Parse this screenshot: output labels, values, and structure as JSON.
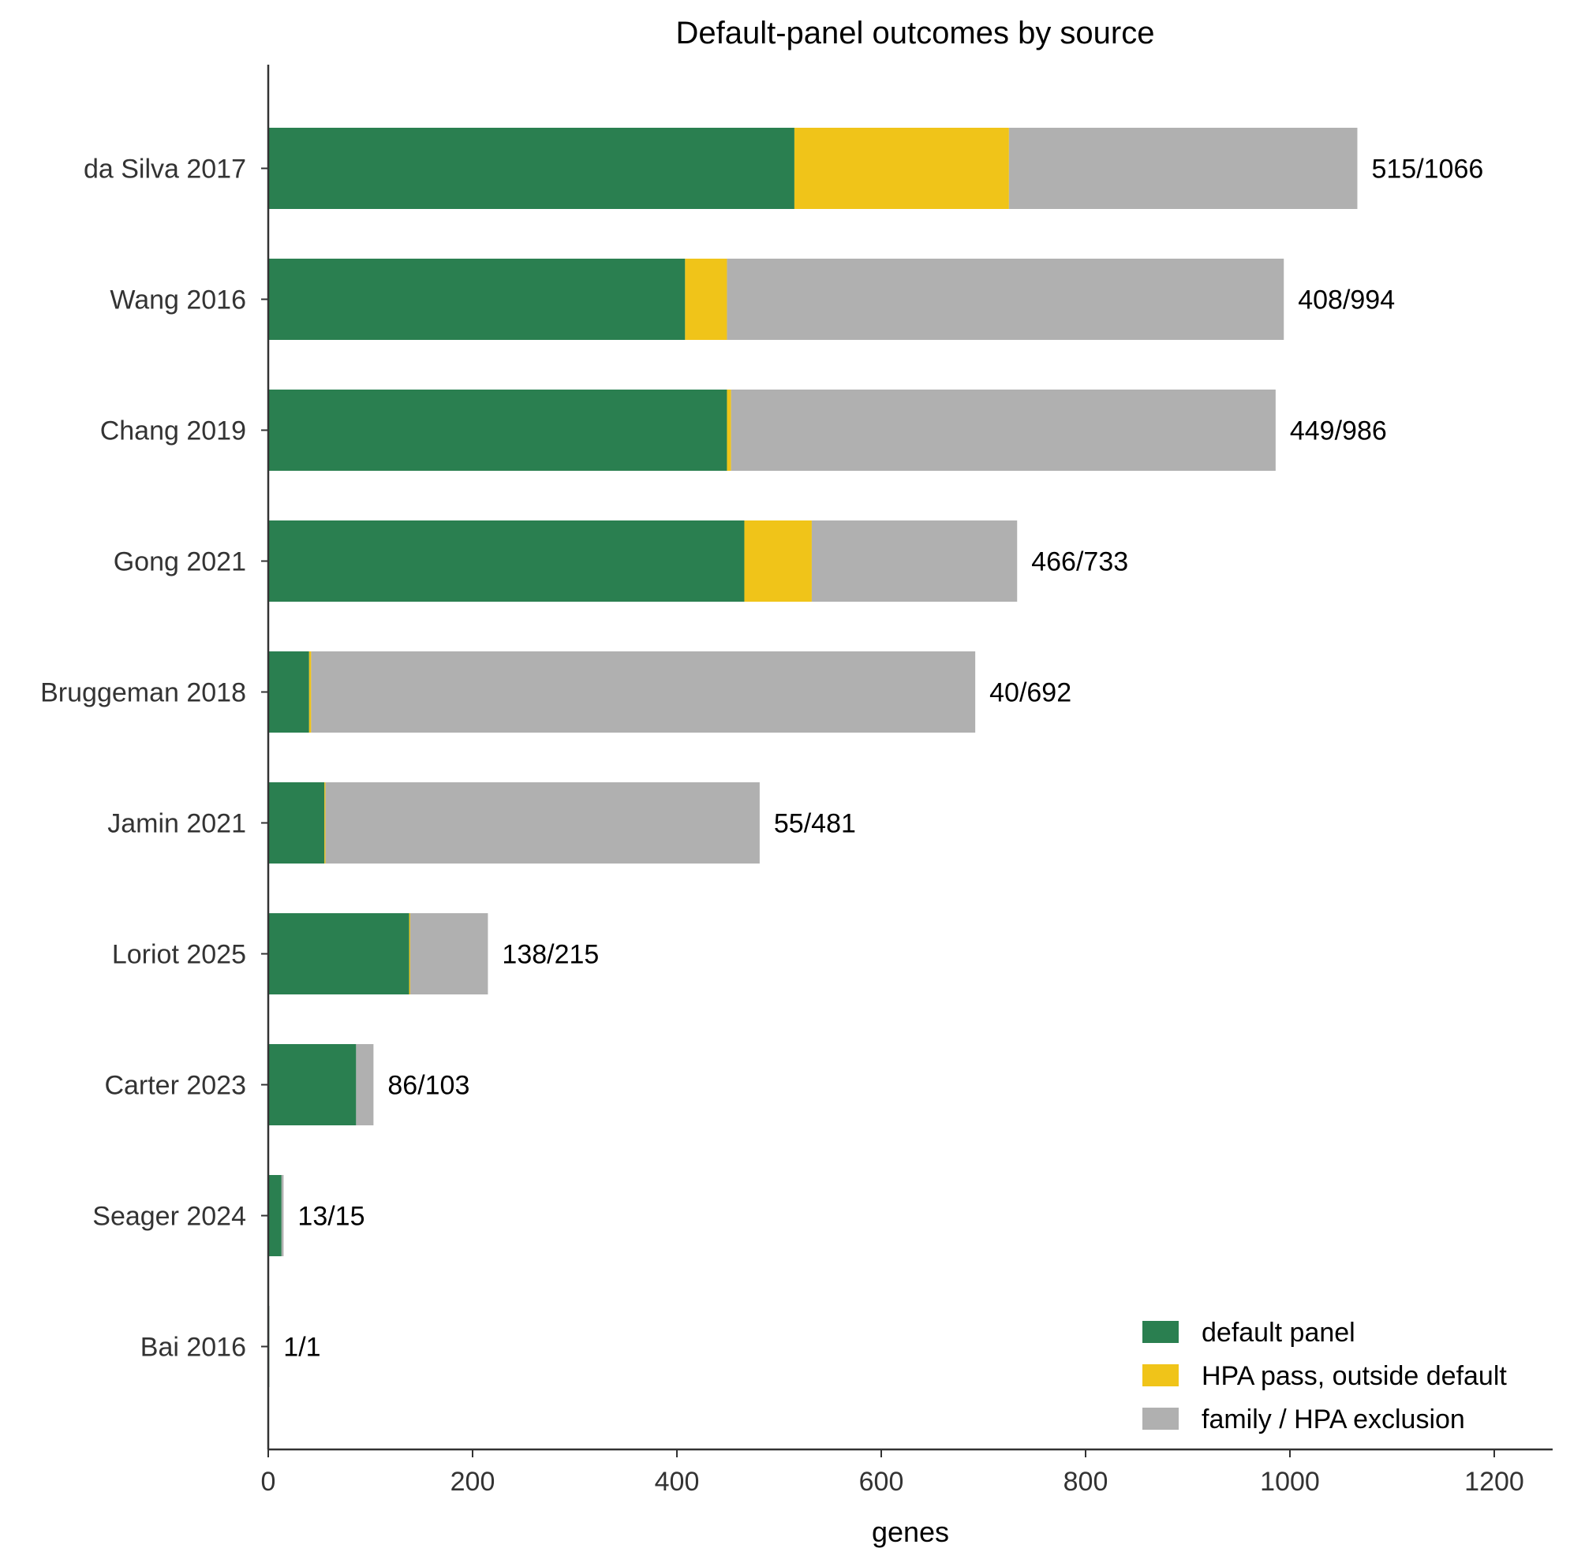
{
  "chart_data": {
    "type": "bar",
    "orientation": "horizontal",
    "stacked": true,
    "title": "Default-panel outcomes by source",
    "xlabel": "genes",
    "ylabel": "",
    "xlim": [
      0,
      1260
    ],
    "xticks": [
      0,
      200,
      400,
      600,
      800,
      1000,
      1200
    ],
    "grid": false,
    "legend_position": "bottom-right",
    "categories": [
      "da Silva 2017",
      "Wang 2016",
      "Chang 2019",
      "Gong 2021",
      "Bruggeman 2018",
      "Jamin 2021",
      "Loriot 2025",
      "Carter 2023",
      "Seager 2024",
      "Bai 2016"
    ],
    "series": [
      {
        "name": "default panel",
        "color": "#2a7f50",
        "values": [
          515,
          408,
          449,
          466,
          40,
          55,
          138,
          86,
          13,
          1
        ]
      },
      {
        "name": "HPA pass, outside default",
        "color": "#f0c419",
        "values": [
          210,
          41,
          4,
          66,
          2,
          1,
          1,
          0,
          0,
          0
        ]
      },
      {
        "name": "family / HPA exclusion",
        "color": "#b0b0b0",
        "values": [
          341,
          545,
          533,
          201,
          650,
          425,
          76,
          17,
          2,
          0
        ]
      }
    ],
    "data_labels": [
      "515/1066",
      "408/994",
      "449/986",
      "466/733",
      "40/692",
      "55/481",
      "138/215",
      "86/103",
      "13/15",
      "1/1"
    ]
  }
}
